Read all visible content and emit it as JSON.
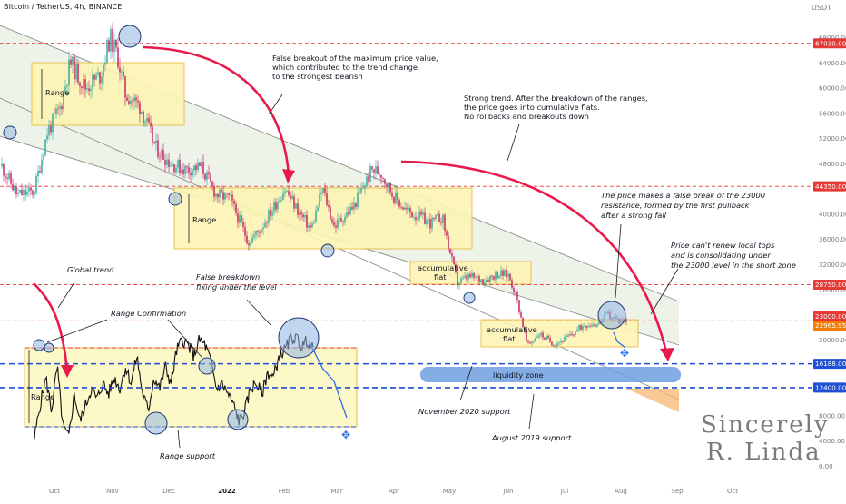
{
  "header": {
    "symbol_line": "Bitcoin / TetherUS, 4h, BINANCE",
    "currency": "USDT"
  },
  "chart_data": [
    {
      "type": "line",
      "title": "Bitcoin / TetherUS, 4h, BINANCE",
      "ylabel": "USDT",
      "x_ticks": [
        "Oct",
        "Nov",
        "Dec",
        "2022",
        "Feb",
        "Mar",
        "Apr",
        "May",
        "Jun",
        "Jul",
        "Aug",
        "Sep",
        "Oct"
      ],
      "y_ticks": [
        "0.00",
        "4000.00",
        "8000.00",
        "12000.00",
        "16000.00",
        "20000.00",
        "24000.00",
        "28000.00",
        "32000.00",
        "36000.00",
        "40000.00",
        "44000.00",
        "48000.00",
        "52000.00",
        "56000.00",
        "60000.00",
        "64000.00",
        "68000.00"
      ],
      "price_levels": [
        {
          "value": 67030.0,
          "label": "67030.00",
          "color": "#e53935"
        },
        {
          "value": 44350.0,
          "label": "44350.00",
          "color": "#e53935"
        },
        {
          "value": 28750.0,
          "label": "28750.00",
          "color": "#e53935"
        },
        {
          "value": 23000.0,
          "label": "23000.00",
          "color": "#e53935"
        },
        {
          "value": 22965.95,
          "label": "22965.95",
          "color": "#f57c00"
        },
        {
          "value": 16188.0,
          "label": "16188.00",
          "color": "#1e4fd6"
        },
        {
          "value": 12400.0,
          "label": "12400.00",
          "color": "#1e4fd6"
        }
      ],
      "series": [
        {
          "x_dates": [
            "2021-09-14",
            "2021-09-22",
            "2021-10-01",
            "2021-10-08",
            "2021-10-15",
            "2021-10-20",
            "2021-10-28",
            "2021-11-05",
            "2021-11-10",
            "2021-11-14",
            "2021-11-18",
            "2021-11-26",
            "2021-12-04",
            "2021-12-12",
            "2021-12-20",
            "2021-12-28",
            "2022-01-05",
            "2022-01-12",
            "2022-01-22",
            "2022-01-28",
            "2022-02-05",
            "2022-02-10",
            "2022-02-18",
            "2022-02-24",
            "2022-03-02",
            "2022-03-08",
            "2022-03-18",
            "2022-03-28",
            "2022-04-02",
            "2022-04-08",
            "2022-04-15",
            "2022-04-22",
            "2022-04-28",
            "2022-05-04",
            "2022-05-08",
            "2022-05-12",
            "2022-05-18",
            "2022-05-26",
            "2022-06-02",
            "2022-06-08",
            "2022-06-12",
            "2022-06-18",
            "2022-06-24",
            "2022-07-02",
            "2022-07-10",
            "2022-07-18",
            "2022-07-25",
            "2022-07-30",
            "2022-08-05",
            "2022-08-10"
          ],
          "values": [
            47500,
            43000,
            43500,
            53000,
            57000,
            64000,
            60000,
            62000,
            68000,
            65000,
            59000,
            57000,
            50500,
            48000,
            47000,
            47500,
            43000,
            42500,
            35500,
            37500,
            41500,
            44000,
            40000,
            37500,
            44000,
            38000,
            41000,
            47000,
            46500,
            43000,
            40500,
            39500,
            38500,
            39500,
            34000,
            29000,
            30000,
            29500,
            30500,
            30300,
            27000,
            19000,
            21000,
            19300,
            20500,
            22500,
            22500,
            24000,
            23000,
            23200
          ]
        }
      ]
    },
    {
      "type": "line",
      "note": "illustrative inset drawing of a range",
      "series": [
        {
          "values": [
            0.05,
            0.35,
            0.6,
            0.3,
            0.7,
            0.15,
            0.05,
            0.45,
            0.2,
            0.35,
            0.5,
            0.4,
            0.55,
            0.45,
            0.6,
            0.5,
            0.7,
            0.55,
            0.8,
            0.45,
            0.3,
            0.6,
            0.5,
            0.7,
            0.55,
            0.85,
            0.95,
            0.9,
            0.8,
            0.95,
            0.9,
            0.75,
            0.5,
            0.55,
            0.45,
            0.35,
            0.2,
            0.3,
            0.5,
            0.55,
            0.45,
            0.65,
            0.6,
            0.8,
            0.85,
            0.95,
            0.98,
            0.88,
            0.95,
            0.85
          ]
        }
      ]
    }
  ],
  "labels": {
    "range_1": "Range",
    "range_2": "Range",
    "range_inset": "Range",
    "accum_1": [
      "accumulative",
      "flat"
    ],
    "accum_2": [
      "accumulative",
      "flat"
    ],
    "liquidity": "liquidity zone",
    "false_breakout": [
      "False breakout of the maximum price value,",
      "which contributed to the trend change",
      "to the strongest bearish"
    ],
    "strong_trend": [
      "Strong trend. After the breakdown of the ranges,",
      "the price goes into cumulative flats.",
      "No rollbacks and breakouts down"
    ],
    "false_break_23000": [
      "The price makes a false break of the 23000",
      "resistance, formed by the first pullback",
      "after a strong fall"
    ],
    "cant_renew": [
      "Price can't renew local tops",
      "and is consolidating under",
      "the 23000 level in the short zone"
    ],
    "global_trend": "Global trend",
    "false_breakdown": [
      "False breakdown",
      "fixing under the level"
    ],
    "range_confirmation": "Range Confirmation",
    "range_support": "Range support",
    "nov_2020": "November 2020 support",
    "aug_2019": "August 2019 support",
    "signature": [
      "Sincerely",
      "R. Linda"
    ]
  },
  "colors": {
    "bull": "#26a69a",
    "bear": "#c2185b",
    "red_arrow": "#e8194b",
    "blue_level": "#1e4fd6",
    "range_fill": "#fff7b8",
    "range_stroke": "#e0a800",
    "channel_fill": "#e3f3e7",
    "circle_fill": "#8fb5e3",
    "circle_stroke": "#1f3b73"
  }
}
